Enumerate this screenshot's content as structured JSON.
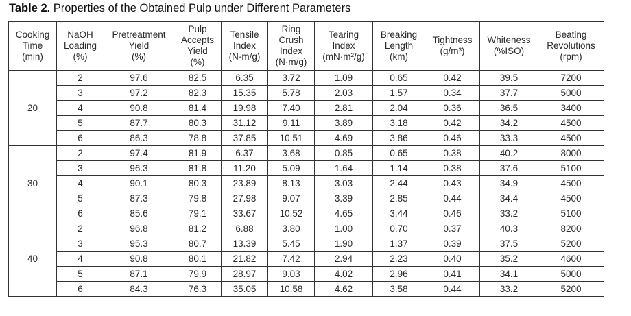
{
  "caption": {
    "label": "Table 2.",
    "title": " Properties of the Obtained Pulp under Different Parameters"
  },
  "headers": [
    [
      "Cooking",
      "Time",
      "(min)"
    ],
    [
      "NaOH",
      "Loading",
      "(%)"
    ],
    [
      "Pretreatment",
      "Yield",
      "(%)"
    ],
    [
      "Pulp",
      "Accepts",
      "Yield",
      "(%)"
    ],
    [
      "Tensile",
      "Index",
      "(N·m/g)"
    ],
    [
      "Ring",
      "Crush",
      "Index",
      "(N·m/g)"
    ],
    [
      "Tearing",
      "Index",
      "(mN·m²/g)"
    ],
    [
      "Breaking",
      "Length",
      "(km)"
    ],
    [
      "Tightness",
      "(g/m³)"
    ],
    [
      "Whiteness",
      "(%ISO)"
    ],
    [
      "Beating",
      "Revolutions",
      "(rpm)"
    ]
  ],
  "groups": [
    {
      "cooking_time": "20",
      "rows": [
        [
          "2",
          "97.6",
          "82.5",
          "6.35",
          "3.72",
          "1.09",
          "0.65",
          "0.42",
          "39.5",
          "7200"
        ],
        [
          "3",
          "97.2",
          "82.3",
          "15.35",
          "5.78",
          "2.03",
          "1.57",
          "0.34",
          "37.7",
          "5000"
        ],
        [
          "4",
          "90.8",
          "81.4",
          "19.98",
          "7.40",
          "2.81",
          "2.04",
          "0.36",
          "36.5",
          "3400"
        ],
        [
          "5",
          "87.7",
          "80.3",
          "31.12",
          "9.11",
          "3.89",
          "3.18",
          "0.42",
          "34.2",
          "4500"
        ],
        [
          "6",
          "86.3",
          "78.8",
          "37.85",
          "10.51",
          "4.69",
          "3.86",
          "0.46",
          "33.3",
          "4500"
        ]
      ]
    },
    {
      "cooking_time": "30",
      "rows": [
        [
          "2",
          "97.4",
          "81.9",
          "6.37",
          "3.68",
          "0.85",
          "0.65",
          "0.38",
          "40.2",
          "8000"
        ],
        [
          "3",
          "96.3",
          "81.8",
          "11.20",
          "5.09",
          "1.64",
          "1.14",
          "0.38",
          "37.6",
          "5100"
        ],
        [
          "4",
          "90.1",
          "80.3",
          "23.89",
          "8.13",
          "3.03",
          "2.44",
          "0.43",
          "34.9",
          "4500"
        ],
        [
          "5",
          "87.3",
          "79.8",
          "27.98",
          "9.07",
          "3.39",
          "2.85",
          "0.44",
          "34.4",
          "4500"
        ],
        [
          "6",
          "85.6",
          "79.1",
          "33.67",
          "10.52",
          "4.65",
          "3.44",
          "0.46",
          "33.2",
          "5100"
        ]
      ]
    },
    {
      "cooking_time": "40",
      "rows": [
        [
          "2",
          "96.8",
          "81.2",
          "6.88",
          "3.80",
          "1.00",
          "0.70",
          "0.37",
          "40.3",
          "8200"
        ],
        [
          "3",
          "95.3",
          "80.7",
          "13.39",
          "5.45",
          "1.90",
          "1.37",
          "0.39",
          "37.5",
          "5200"
        ],
        [
          "4",
          "90.8",
          "80.1",
          "21.82",
          "7.42",
          "2.94",
          "2.23",
          "0.40",
          "35.2",
          "4600"
        ],
        [
          "5",
          "87.1",
          "79.9",
          "28.97",
          "9.03",
          "4.02",
          "2.96",
          "0.41",
          "34.1",
          "5000"
        ],
        [
          "6",
          "84.3",
          "76.3",
          "35.05",
          "10.58",
          "4.62",
          "3.58",
          "0.44",
          "33.2",
          "5200"
        ]
      ]
    }
  ]
}
